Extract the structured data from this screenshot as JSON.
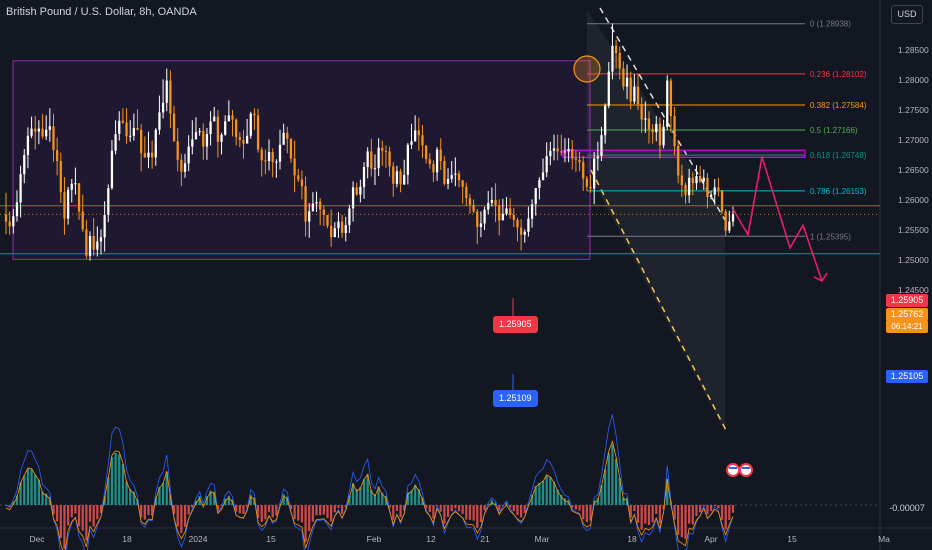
{
  "header": {
    "title": "British Pound / U.S. Dollar, 8h, OANDA",
    "currency_button": "USD"
  },
  "colors": {
    "background": "#131722",
    "bull": "#ffffff",
    "bear": "#f7931a",
    "zone": "#9c27b0",
    "resistance": "#f23645",
    "support": "#2962ff",
    "arrow": "#e91e63"
  },
  "chart_data": {
    "type": "candlestick",
    "symbol": "GBPUSD",
    "timeframe": "8h",
    "ylim": [
      1.2425,
      1.2905
    ],
    "y_ticks": [
      "1.28500",
      "1.28000",
      "1.27500",
      "1.27000",
      "1.26500",
      "1.26000",
      "1.25500",
      "1.25000",
      "1.24500"
    ],
    "x_ticks": [
      "Dec",
      "18",
      "2024",
      "15",
      "Feb",
      "12",
      "21",
      "Mar",
      "18",
      "Apr",
      "15",
      "Ma"
    ],
    "levels": {
      "resistance": {
        "value": 1.25905,
        "label": "1.25905"
      },
      "support": {
        "value": 1.25105,
        "label": "1.25105"
      },
      "support_bubble": "1.25109",
      "last_price": {
        "value": 1.25762,
        "label": "1.25762",
        "countdown": "06:14:21"
      }
    },
    "fibonacci": [
      {
        "label": "0 (1.28938)",
        "value": 1.28938,
        "color": "#787b86"
      },
      {
        "label": "0.236 (1.28102)",
        "value": 1.28102,
        "color": "#f23645"
      },
      {
        "label": "0.382 (1.27584)",
        "value": 1.27584,
        "color": "#ff9800"
      },
      {
        "label": "0.5 (1.27166)",
        "value": 1.27166,
        "color": "#4caf50"
      },
      {
        "label": "0.618 (1.26748)",
        "value": 1.26748,
        "color": "#089981"
      },
      {
        "label": "0.786 (1.26153)",
        "value": 1.26153,
        "color": "#00bcd4"
      },
      {
        "label": "1 (1.25395)",
        "value": 1.25395,
        "color": "#787b86"
      }
    ],
    "range_box": {
      "top": 1.2832,
      "bottom": 1.2501
    },
    "entry_zone": {
      "top": 1.2683,
      "bottom": 1.2671
    },
    "projected_path": [
      1.2585,
      1.2542,
      1.2672,
      1.252,
      1.2558,
      1.2465
    ],
    "oscillator": {
      "label": "-0.00007",
      "value": -7e-05
    },
    "candles": [
      [
        1.2576,
        1.2564,
        1.2612,
        1.2543
      ],
      [
        1.2564,
        1.2556,
        1.2581,
        1.2542
      ],
      [
        1.2556,
        1.2573,
        1.2585,
        1.2544
      ],
      [
        1.2573,
        1.2596,
        1.2616,
        1.2564
      ],
      [
        1.2596,
        1.2643,
        1.2657,
        1.2571
      ],
      [
        1.2643,
        1.2675,
        1.2685,
        1.2628
      ],
      [
        1.2675,
        1.2707,
        1.2721,
        1.2653
      ],
      [
        1.2707,
        1.2719,
        1.2739,
        1.2703
      ],
      [
        1.2719,
        1.2714,
        1.274,
        1.2684
      ],
      [
        1.2714,
        1.2719,
        1.2733,
        1.2693
      ],
      [
        1.2719,
        1.2706,
        1.2743,
        1.2702
      ],
      [
        1.2706,
        1.2717,
        1.2741,
        1.27
      ],
      [
        1.2717,
        1.2723,
        1.2753,
        1.2697
      ],
      [
        1.2723,
        1.2683,
        1.2744,
        1.2664
      ],
      [
        1.2683,
        1.2665,
        1.2704,
        1.2641
      ],
      [
        1.2665,
        1.2613,
        1.2679,
        1.2595
      ],
      [
        1.2613,
        1.2569,
        1.2638,
        1.2542
      ],
      [
        1.2569,
        1.2617,
        1.2622,
        1.2559
      ],
      [
        1.2617,
        1.2627,
        1.2635,
        1.2596
      ],
      [
        1.2627,
        1.2628,
        1.2654,
        1.2609
      ],
      [
        1.2628,
        1.2581,
        1.2628,
        1.2567
      ],
      [
        1.2581,
        1.2551,
        1.2609,
        1.2547
      ],
      [
        1.2551,
        1.2507,
        1.2567,
        1.2502
      ],
      [
        1.2507,
        1.254,
        1.2548,
        1.2499
      ],
      [
        1.254,
        1.2517,
        1.257,
        1.2507
      ],
      [
        1.2517,
        1.2531,
        1.2556,
        1.2506
      ],
      [
        1.2531,
        1.2538,
        1.2551,
        1.2509
      ],
      [
        1.2538,
        1.2575,
        1.2598,
        1.2514
      ],
      [
        1.2575,
        1.262,
        1.2626,
        1.2563
      ],
      [
        1.262,
        1.2682,
        1.27,
        1.2617
      ],
      [
        1.2682,
        1.271,
        1.2733,
        1.2676
      ],
      [
        1.271,
        1.2732,
        1.2748,
        1.2699
      ],
      [
        1.2732,
        1.2729,
        1.2753,
        1.2727
      ],
      [
        1.2729,
        1.2706,
        1.2753,
        1.2694
      ],
      [
        1.2706,
        1.2707,
        1.2733,
        1.2697
      ],
      [
        1.2707,
        1.272,
        1.2744,
        1.2699
      ],
      [
        1.272,
        1.2717,
        1.2751,
        1.2716
      ],
      [
        1.2717,
        1.2678,
        1.2727,
        1.2648
      ],
      [
        1.2678,
        1.2671,
        1.2706,
        1.267
      ],
      [
        1.2671,
        1.2679,
        1.2714,
        1.2653
      ],
      [
        1.2679,
        1.2671,
        1.2699,
        1.2652
      ],
      [
        1.2671,
        1.2717,
        1.272,
        1.2657
      ],
      [
        1.2717,
        1.2746,
        1.2774,
        1.2709
      ],
      [
        1.2746,
        1.2762,
        1.2801,
        1.2736
      ],
      [
        1.2762,
        1.2799,
        1.2819,
        1.2748
      ],
      [
        1.2799,
        1.2744,
        1.2816,
        1.272
      ],
      [
        1.2744,
        1.2698,
        1.2757,
        1.2697
      ],
      [
        1.2698,
        1.2667,
        1.272,
        1.2648
      ],
      [
        1.2667,
        1.2647,
        1.2677,
        1.2623
      ],
      [
        1.2647,
        1.2661,
        1.2677,
        1.2637
      ],
      [
        1.2661,
        1.2689,
        1.2708,
        1.2648
      ],
      [
        1.2689,
        1.2701,
        1.2733,
        1.2676
      ],
      [
        1.2701,
        1.2713,
        1.2738,
        1.2706
      ],
      [
        1.2713,
        1.2715,
        1.272,
        1.2707
      ],
      [
        1.2715,
        1.2689,
        1.2728,
        1.2667
      ],
      [
        1.2689,
        1.271,
        1.272,
        1.2667
      ],
      [
        1.271,
        1.2731,
        1.2748,
        1.2691
      ],
      [
        1.2731,
        1.2739,
        1.2755,
        1.2733
      ],
      [
        1.2739,
        1.2697,
        1.275,
        1.2671
      ],
      [
        1.2697,
        1.2709,
        1.2712,
        1.2676
      ],
      [
        1.2709,
        1.2731,
        1.2741,
        1.2707
      ],
      [
        1.2731,
        1.2741,
        1.2766,
        1.274
      ],
      [
        1.2741,
        1.2734,
        1.275,
        1.2706
      ],
      [
        1.2734,
        1.2705,
        1.2736,
        1.2691
      ],
      [
        1.2705,
        1.27,
        1.2713,
        1.2688
      ],
      [
        1.27,
        1.2694,
        1.2717,
        1.2669
      ],
      [
        1.2694,
        1.2707,
        1.2735,
        1.2697
      ],
      [
        1.2707,
        1.2744,
        1.2747,
        1.2702
      ],
      [
        1.2744,
        1.2741,
        1.2753,
        1.2717
      ],
      [
        1.2741,
        1.2684,
        1.2752,
        1.2679
      ],
      [
        1.2684,
        1.2666,
        1.2688,
        1.2639
      ],
      [
        1.2666,
        1.2665,
        1.2684,
        1.2643
      ],
      [
        1.2665,
        1.268,
        1.2701,
        1.2649
      ],
      [
        1.268,
        1.2663,
        1.2686,
        1.2638
      ],
      [
        1.2663,
        1.2664,
        1.2668,
        1.2637
      ],
      [
        1.2664,
        1.2692,
        1.2717,
        1.2651
      ],
      [
        1.2692,
        1.2712,
        1.2727,
        1.2697
      ],
      [
        1.2712,
        1.2702,
        1.2722,
        1.2678
      ],
      [
        1.2702,
        1.2669,
        1.2703,
        1.2662
      ],
      [
        1.2669,
        1.2641,
        1.2699,
        1.2613
      ],
      [
        1.2641,
        1.2634,
        1.2652,
        1.263
      ],
      [
        1.2634,
        1.2623,
        1.2649,
        1.2601
      ],
      [
        1.2623,
        1.2564,
        1.2639,
        1.2539
      ],
      [
        1.2564,
        1.2581,
        1.2595,
        1.2537
      ],
      [
        1.2581,
        1.2594,
        1.2613,
        1.2586
      ],
      [
        1.2594,
        1.2597,
        1.2614,
        1.258
      ],
      [
        1.2597,
        1.2584,
        1.2603,
        1.2558
      ],
      [
        1.2584,
        1.2575,
        1.2591,
        1.2557
      ],
      [
        1.2575,
        1.2557,
        1.2575,
        1.2553
      ],
      [
        1.2557,
        1.2538,
        1.2584,
        1.2522
      ],
      [
        1.2538,
        1.2553,
        1.2563,
        1.2546
      ],
      [
        1.2553,
        1.2564,
        1.258,
        1.2537
      ],
      [
        1.2564,
        1.2545,
        1.2575,
        1.2537
      ],
      [
        1.2545,
        1.2558,
        1.2572,
        1.2531
      ],
      [
        1.2558,
        1.2586,
        1.2592,
        1.2545
      ],
      [
        1.2586,
        1.2621,
        1.2631,
        1.2564
      ],
      [
        1.2621,
        1.2609,
        1.2629,
        1.2607
      ],
      [
        1.2609,
        1.2622,
        1.2634,
        1.2596
      ],
      [
        1.2622,
        1.2655,
        1.2663,
        1.2602
      ],
      [
        1.2655,
        1.2681,
        1.2688,
        1.2636
      ],
      [
        1.2681,
        1.2652,
        1.2702,
        1.2639
      ],
      [
        1.2652,
        1.2653,
        1.2676,
        1.2625
      ],
      [
        1.2653,
        1.2687,
        1.2703,
        1.264
      ],
      [
        1.2687,
        1.2682,
        1.2699,
        1.2657
      ],
      [
        1.2682,
        1.2681,
        1.2691,
        1.2653
      ],
      [
        1.2681,
        1.2656,
        1.2689,
        1.2639
      ],
      [
        1.2656,
        1.2627,
        1.2663,
        1.2605
      ],
      [
        1.2627,
        1.2648,
        1.2657,
        1.2621
      ],
      [
        1.2648,
        1.2626,
        1.2652,
        1.2613
      ],
      [
        1.2626,
        1.2642,
        1.2667,
        1.2625
      ],
      [
        1.2642,
        1.2692,
        1.2695,
        1.2626
      ],
      [
        1.2692,
        1.2698,
        1.2727,
        1.2685
      ],
      [
        1.2698,
        1.2716,
        1.2741,
        1.2697
      ],
      [
        1.2716,
        1.2708,
        1.2737,
        1.2682
      ],
      [
        1.2708,
        1.2691,
        1.2725,
        1.267
      ],
      [
        1.2691,
        1.2668,
        1.2691,
        1.2661
      ],
      [
        1.2668,
        1.266,
        1.2678,
        1.2652
      ],
      [
        1.266,
        1.2646,
        1.2666,
        1.263
      ],
      [
        1.2646,
        1.2684,
        1.2688,
        1.2632
      ],
      [
        1.2684,
        1.2665,
        1.2703,
        1.265
      ],
      [
        1.2665,
        1.2627,
        1.2673,
        1.2624
      ],
      [
        1.2627,
        1.2635,
        1.2653,
        1.2618
      ],
      [
        1.2635,
        1.2642,
        1.2665,
        1.2629
      ],
      [
        1.2642,
        1.2644,
        1.2671,
        1.2623
      ],
      [
        1.2644,
        1.2633,
        1.2649,
        1.2621
      ],
      [
        1.2633,
        1.2622,
        1.2632,
        1.2594
      ],
      [
        1.2622,
        1.2603,
        1.2629,
        1.259
      ],
      [
        1.2603,
        1.2592,
        1.261,
        1.2577
      ],
      [
        1.2592,
        1.2581,
        1.2601,
        1.2578
      ],
      [
        1.2581,
        1.2555,
        1.2585,
        1.2527
      ],
      [
        1.2555,
        1.2561,
        1.2581,
        1.2538
      ],
      [
        1.2561,
        1.2584,
        1.2589,
        1.255
      ],
      [
        1.2584,
        1.2595,
        1.2615,
        1.2576
      ],
      [
        1.2595,
        1.26,
        1.2621,
        1.2589
      ],
      [
        1.26,
        1.2591,
        1.2628,
        1.2563
      ],
      [
        1.2591,
        1.2566,
        1.2601,
        1.2541
      ],
      [
        1.2566,
        1.2577,
        1.2602,
        1.257
      ],
      [
        1.2577,
        1.2586,
        1.2605,
        1.2574
      ],
      [
        1.2586,
        1.2575,
        1.2603,
        1.2569
      ],
      [
        1.2575,
        1.2567,
        1.2587,
        1.2555
      ],
      [
        1.2567,
        1.2554,
        1.257,
        1.2531
      ],
      [
        1.2554,
        1.2542,
        1.2568,
        1.2516
      ],
      [
        1.2542,
        1.2547,
        1.2551,
        1.2529
      ],
      [
        1.2547,
        1.2569,
        1.2589,
        1.2539
      ],
      [
        1.2569,
        1.2593,
        1.2601,
        1.2554
      ],
      [
        1.2593,
        1.262,
        1.262,
        1.2574
      ],
      [
        1.262,
        1.2633,
        1.2638,
        1.2601
      ],
      [
        1.2633,
        1.2646,
        1.2669,
        1.2641
      ],
      [
        1.2646,
        1.2673,
        1.2696,
        1.2638
      ],
      [
        1.2673,
        1.2682,
        1.2697,
        1.2658
      ],
      [
        1.2682,
        1.2686,
        1.2709,
        1.2666
      ],
      [
        1.2686,
        1.2681,
        1.2709,
        1.2666
      ],
      [
        1.2681,
        1.268,
        1.2709,
        1.2674
      ],
      [
        1.268,
        1.2681,
        1.2703,
        1.2663
      ],
      [
        1.2681,
        1.2685,
        1.2703,
        1.2663
      ],
      [
        1.2685,
        1.2669,
        1.27,
        1.2651
      ],
      [
        1.2669,
        1.2667,
        1.2683,
        1.2647
      ],
      [
        1.2667,
        1.2663,
        1.268,
        1.2648
      ],
      [
        1.2663,
        1.2636,
        1.2673,
        1.2615
      ],
      [
        1.2636,
        1.2622,
        1.264,
        1.2615
      ],
      [
        1.2622,
        1.2619,
        1.2642,
        1.2612
      ],
      [
        1.2619,
        1.2669,
        1.268,
        1.2593
      ],
      [
        1.2669,
        1.2673,
        1.2697,
        1.2649
      ],
      [
        1.2673,
        1.2708,
        1.2722,
        1.2665
      ],
      [
        1.2708,
        1.2757,
        1.2761,
        1.2694
      ],
      [
        1.2757,
        1.2814,
        1.283,
        1.2753
      ],
      [
        1.2814,
        1.2857,
        1.2894,
        1.2801
      ],
      [
        1.2857,
        1.2845,
        1.2867,
        1.2819
      ],
      [
        1.2845,
        1.2819,
        1.2856,
        1.2801
      ],
      [
        1.2819,
        1.2789,
        1.2831,
        1.2783
      ],
      [
        1.2789,
        1.2804,
        1.2826,
        1.2768
      ],
      [
        1.2804,
        1.2764,
        1.2814,
        1.2751
      ],
      [
        1.2764,
        1.2789,
        1.281,
        1.276
      ],
      [
        1.2789,
        1.276,
        1.281,
        1.275
      ],
      [
        1.276,
        1.2734,
        1.2771,
        1.2712
      ],
      [
        1.2734,
        1.2736,
        1.2764,
        1.2712
      ],
      [
        1.2736,
        1.2718,
        1.2748,
        1.2694
      ],
      [
        1.2718,
        1.2713,
        1.2726,
        1.2694
      ],
      [
        1.2713,
        1.2727,
        1.274,
        1.2698
      ],
      [
        1.2727,
        1.2691,
        1.2738,
        1.2669
      ],
      [
        1.2691,
        1.2722,
        1.2734,
        1.2686
      ],
      [
        1.2722,
        1.2799,
        1.2808,
        1.2717
      ],
      [
        1.2799,
        1.274,
        1.2803,
        1.2712
      ],
      [
        1.274,
        1.269,
        1.2755,
        1.2675
      ],
      [
        1.269,
        1.2641,
        1.27,
        1.2628
      ],
      [
        1.2641,
        1.2625,
        1.2659,
        1.2605
      ],
      [
        1.2625,
        1.2608,
        1.2629,
        1.2594
      ],
      [
        1.2608,
        1.2637,
        1.2652,
        1.2595
      ],
      [
        1.2637,
        1.2628,
        1.2646,
        1.2608
      ],
      [
        1.2628,
        1.264,
        1.2658,
        1.2617
      ],
      [
        1.264,
        1.2631,
        1.2657,
        1.2629
      ],
      [
        1.2631,
        1.2637,
        1.2651,
        1.2617
      ],
      [
        1.2637,
        1.2605,
        1.2645,
        1.2586
      ],
      [
        1.2605,
        1.2609,
        1.2615,
        1.2601
      ],
      [
        1.2609,
        1.2621,
        1.2635,
        1.2592
      ],
      [
        1.2621,
        1.2616,
        1.2637,
        1.2606
      ],
      [
        1.2616,
        1.2581,
        1.2617,
        1.2576
      ],
      [
        1.2581,
        1.2549,
        1.2585,
        1.254
      ],
      [
        1.2549,
        1.2564,
        1.2582,
        1.2545
      ],
      [
        1.2564,
        1.2576,
        1.2589,
        1.2556
      ]
    ]
  }
}
